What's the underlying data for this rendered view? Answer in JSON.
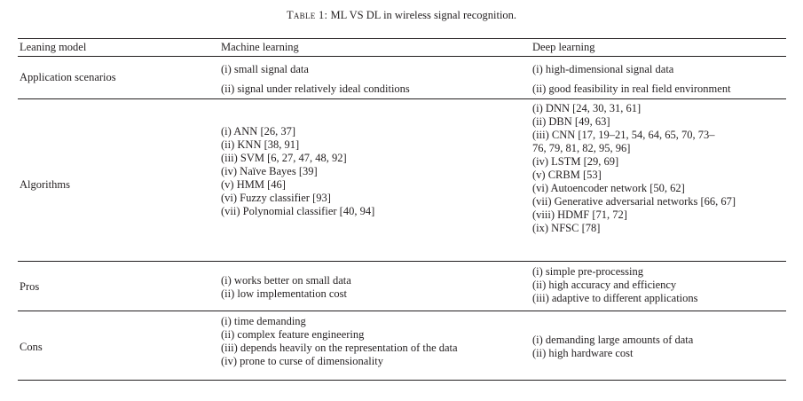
{
  "caption": {
    "label": "Table 1:",
    "title": "ML VS DL in wireless signal recognition."
  },
  "header": [
    "Leaning model",
    "Machine learning",
    "Deep learning"
  ],
  "rows": [
    {
      "label": "Application scenarios",
      "ml": [
        "(i) small signal data",
        "(ii) signal under relatively ideal conditions"
      ],
      "dl": [
        "(i) high-dimensional signal data",
        "(ii) good feasibility in real field environment"
      ]
    },
    {
      "label": "Algorithms",
      "ml": [
        "(i) ANN [26, 37]",
        "(ii) KNN [38, 91]",
        "(iii) SVM [6, 27, 47, 48, 92]",
        "(iv) Naïve Bayes [39]",
        "(v) HMM [46]",
        "(vi) Fuzzy classifier [93]",
        "(vii) Polynomial classifier [40, 94]"
      ],
      "dl": [
        "(i) DNN [24, 30, 31, 61]",
        "(ii) DBN [49, 63]",
        "(iii) CNN [17, 19–21, 54, 64, 65, 70, 73–",
        "76, 79, 81, 82, 95, 96]",
        "(iv) LSTM [29, 69]",
        "(v) CRBM [53]",
        "(vi) Autoencoder network [50, 62]",
        "(vii) Generative adversarial networks [66, 67]",
        "(viii) HDMF [71, 72]",
        "(ix) NFSC [78]"
      ]
    },
    {
      "label": "Pros",
      "ml": [
        "(i) works better on small data",
        "(ii) low implementation cost"
      ],
      "dl": [
        "(i) simple pre-processing",
        "(ii) high accuracy and efficiency",
        "(iii) adaptive to different applications"
      ]
    },
    {
      "label": "Cons",
      "ml": [
        "(i) time demanding",
        "(ii) complex feature engineering",
        "(iii) depends heavily on the representation of the data",
        "(iv) prone to curse of dimensionality"
      ],
      "dl": [
        "(i) demanding large amounts of data",
        "(ii) high hardware cost"
      ]
    }
  ]
}
